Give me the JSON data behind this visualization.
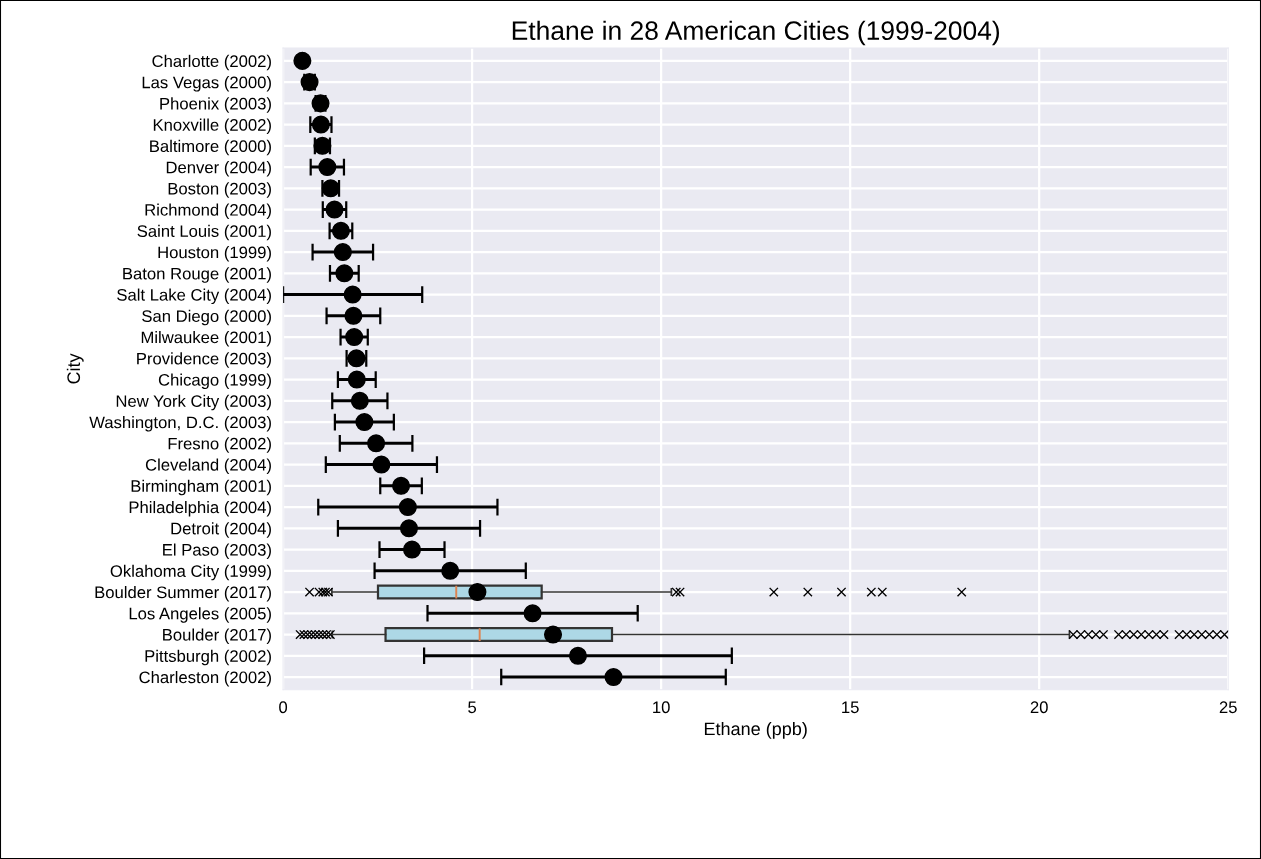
{
  "chart_data": {
    "type": "scatter",
    "orientation": "horizontal",
    "title": "Ethane in 28 American Cities (1999-2004)",
    "xlabel": "Ethane (ppb)",
    "ylabel": "City",
    "categories": [
      "Charlotte (2002)",
      "Las Vegas (2000)",
      "Phoenix (2003)",
      "Knoxville (2002)",
      "Baltimore (2000)",
      "Denver (2004)",
      "Boston (2003)",
      "Richmond (2004)",
      "Saint Louis (2001)",
      "Houston (1999)",
      "Baton Rouge (2001)",
      "Salt Lake City (2004)",
      "San Diego (2000)",
      "Milwaukee (2001)",
      "Providence (2003)",
      "Chicago (1999)",
      "New York City (2003)",
      "Washington, D.C. (2003)",
      "Fresno (2002)",
      "Cleveland (2004)",
      "Birmingham (2001)",
      "Philadelphia (2004)",
      "Detroit (2004)",
      "El Paso (2003)",
      "Oklahoma City (1999)",
      "Boulder Summer (2017)",
      "Los Angeles (2005)",
      "Boulder (2017)",
      "Pittsburgh (2002)",
      "Charleston (2002)"
    ],
    "series": [
      {
        "color": "#000000",
        "values": [
          0.51,
          0.7,
          0.99,
          1.0,
          1.04,
          1.17,
          1.26,
          1.36,
          1.53,
          1.58,
          1.62,
          1.84,
          1.86,
          1.88,
          1.94,
          1.95,
          2.03,
          2.15,
          2.46,
          2.6,
          3.12,
          3.3,
          3.33,
          3.41,
          4.42,
          5.14,
          6.6,
          7.14,
          7.8,
          8.74
        ],
        "errors": [
          0.05,
          0.14,
          0.13,
          0.28,
          0.2,
          0.44,
          0.22,
          0.31,
          0.3,
          0.8,
          0.38,
          1.84,
          0.71,
          0.36,
          0.26,
          0.5,
          0.73,
          0.78,
          0.96,
          1.47,
          0.55,
          2.37,
          1.88,
          0.86,
          2.0,
          null,
          2.78,
          null,
          4.07,
          2.97
        ]
      },
      {
        "type": "box",
        "color": "#add8e6",
        "boxes": [
          null,
          null,
          null,
          null,
          null,
          null,
          null,
          null,
          null,
          null,
          null,
          null,
          null,
          null,
          null,
          null,
          null,
          null,
          null,
          null,
          null,
          null,
          null,
          null,
          null,
          {
            "low": 1.29,
            "q1": 2.51,
            "median": 4.58,
            "q3": 6.84,
            "high": 10.27,
            "outliers": [
              0.7,
              0.95,
              1.05,
              1.12,
              1.2,
              10.4,
              10.5,
              12.98,
              13.88,
              14.77,
              15.56,
              15.85,
              17.95
            ]
          },
          null,
          {
            "low": 1.3,
            "q1": 2.71,
            "median": 5.2,
            "q3": 8.7,
            "high": 20.8,
            "outliers": [
              0.45,
              0.55,
              0.65,
              0.75,
              0.85,
              0.95,
              1.05,
              1.15,
              1.25,
              20.9,
              21.1,
              21.3,
              21.5,
              21.7,
              22.1,
              22.3,
              22.5,
              22.7,
              22.9,
              23.1,
              23.3,
              23.7,
              23.9,
              24.1,
              24.3,
              24.5,
              24.7,
              24.9
            ]
          },
          null,
          null
        ]
      }
    ],
    "xlim": [
      0,
      25
    ],
    "xticks": [
      0,
      5,
      10,
      15,
      20,
      25
    ],
    "grid": true,
    "marker": "circle",
    "legend": false
  }
}
